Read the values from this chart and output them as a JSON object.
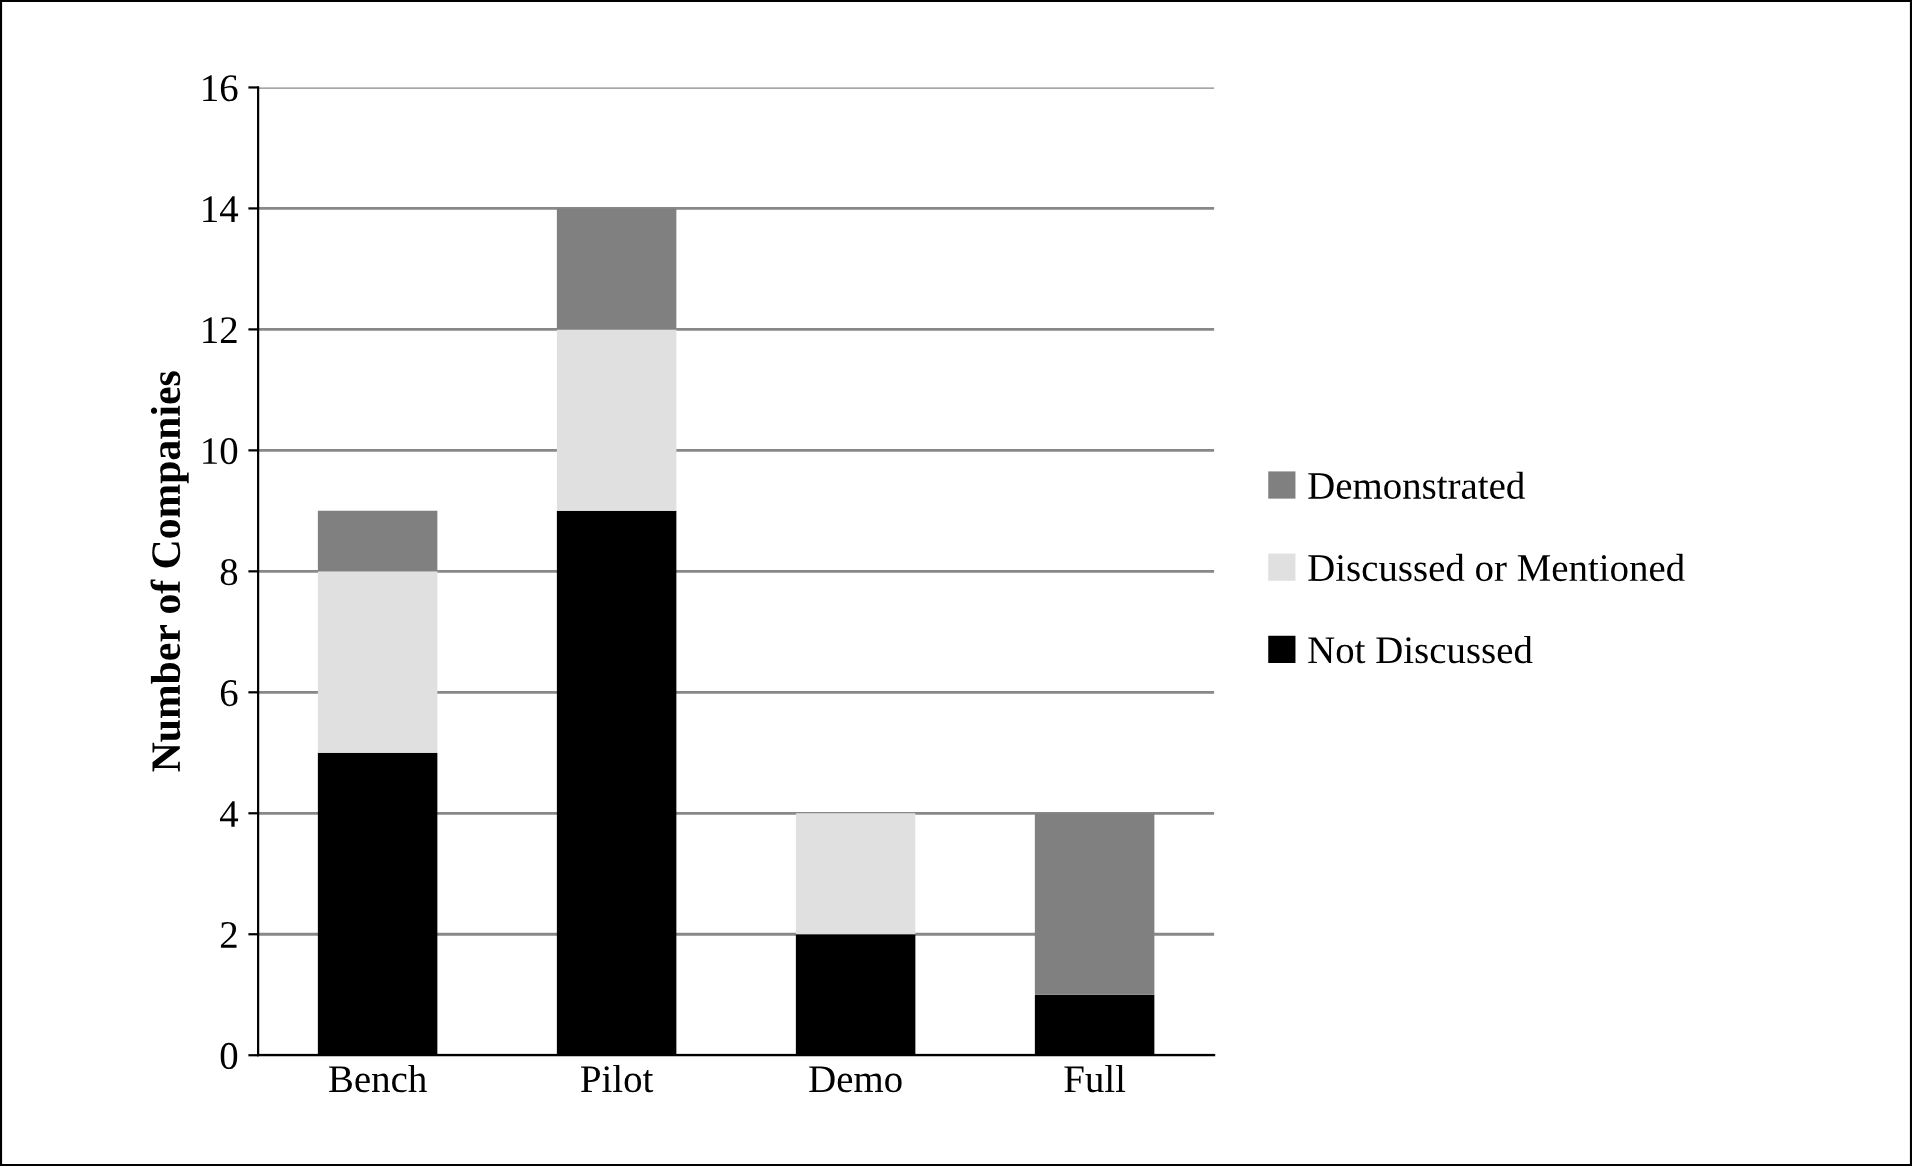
{
  "chart_data": {
    "type": "bar",
    "stacked": true,
    "ylabel": "Number of Companies",
    "categories": [
      "Bench",
      "Pilot",
      "Demo",
      "Full"
    ],
    "series": [
      {
        "name": "Not Discussed",
        "color": "#000000",
        "values": [
          5,
          9,
          2,
          1
        ]
      },
      {
        "name": "Discussed or Mentioned",
        "color": "#e0e0e0",
        "values": [
          3,
          3,
          2,
          0
        ]
      },
      {
        "name": "Demonstrated",
        "color": "#808080",
        "values": [
          1,
          2,
          0,
          3
        ]
      }
    ],
    "ylim": [
      0,
      16
    ],
    "yticks": [
      0,
      2,
      4,
      6,
      8,
      10,
      12,
      14,
      16
    ],
    "grid": "y",
    "legend": "right"
  }
}
